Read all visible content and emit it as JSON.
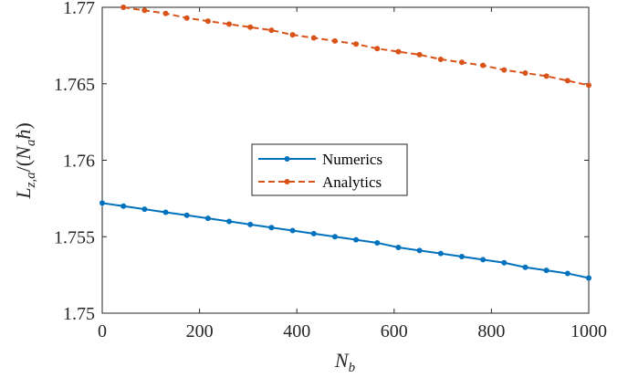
{
  "chart_data": {
    "type": "line",
    "xlabel": "N_b",
    "ylabel": "L_{z,a}/(N_a ħ)",
    "xlim": [
      0,
      1000
    ],
    "ylim": [
      1.75,
      1.77
    ],
    "xticks": [
      0,
      200,
      400,
      600,
      800,
      1000
    ],
    "xtick_labels": [
      "0",
      "200",
      "400",
      "600",
      "800",
      "1000"
    ],
    "yticks": [
      1.75,
      1.755,
      1.76,
      1.765,
      1.77
    ],
    "ytick_labels": [
      "1.75",
      "1.755",
      "1.76",
      "1.765",
      "1.77"
    ],
    "grid": false,
    "legend_position": "center",
    "series": [
      {
        "name": "Numerics",
        "color": "#0072BD",
        "line_style": "solid",
        "marker": "dot",
        "x": [
          0,
          43.5,
          87,
          130.4,
          173.9,
          217.4,
          260.9,
          304.3,
          347.8,
          391.3,
          434.8,
          478.3,
          521.7,
          565.2,
          608.7,
          652.2,
          695.7,
          739.1,
          782.6,
          826.1,
          869.6,
          913,
          956.5,
          1000
        ],
        "y": [
          1.7572,
          1.757,
          1.7568,
          1.7566,
          1.7564,
          1.7562,
          1.756,
          1.7558,
          1.7556,
          1.7554,
          1.7552,
          1.755,
          1.7548,
          1.7546,
          1.7543,
          1.7541,
          1.7539,
          1.7537,
          1.7535,
          1.7533,
          1.753,
          1.7528,
          1.7526,
          1.7523
        ]
      },
      {
        "name": "Analytics",
        "color": "#D95319",
        "line_style": "dashed",
        "marker": "dot",
        "x": [
          43.5,
          87,
          130.4,
          173.9,
          217.4,
          260.9,
          304.3,
          347.8,
          391.3,
          434.8,
          478.3,
          521.7,
          565.2,
          608.7,
          652.2,
          695.7,
          739.1,
          782.6,
          826.1,
          869.6,
          913,
          956.5,
          1000
        ],
        "y": [
          1.77,
          1.7698,
          1.7696,
          1.7693,
          1.7691,
          1.7689,
          1.7687,
          1.7685,
          1.7682,
          1.768,
          1.7678,
          1.7676,
          1.7673,
          1.7671,
          1.7669,
          1.7666,
          1.7664,
          1.7662,
          1.7659,
          1.7657,
          1.7655,
          1.7652,
          1.7649
        ]
      }
    ]
  }
}
